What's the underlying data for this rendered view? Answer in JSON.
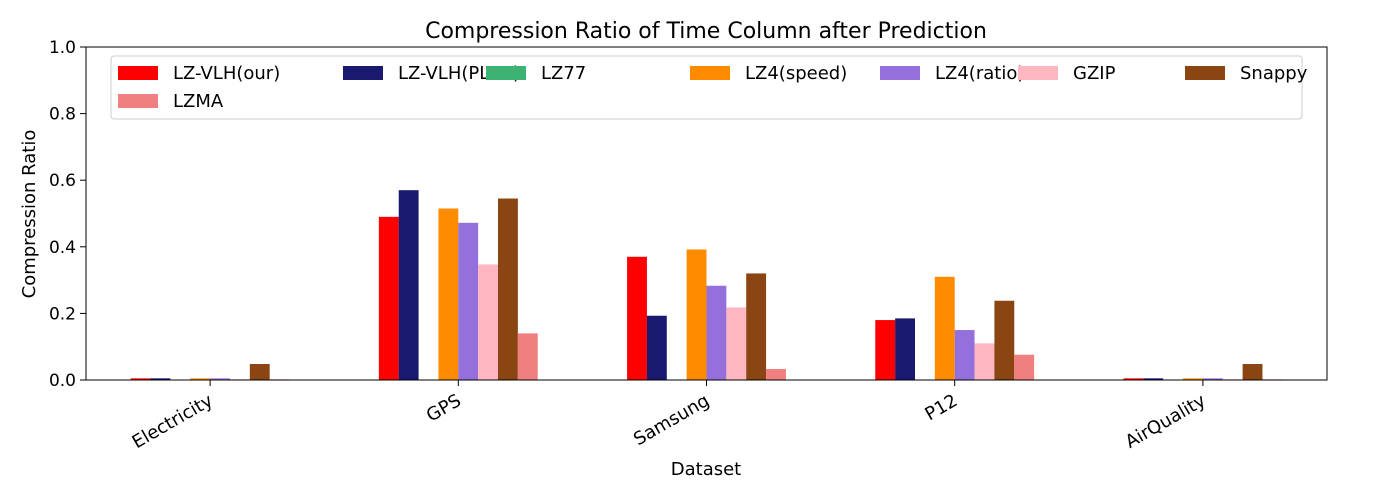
{
  "chart_data": {
    "type": "bar",
    "title": "Compression Ratio of Time Column after Prediction",
    "xlabel": "Dataset",
    "ylabel": "Compression Ratio",
    "ylim": [
      0,
      1.0
    ],
    "yticks": [
      "0.0",
      "0.2",
      "0.4",
      "0.6",
      "0.8",
      "1.0"
    ],
    "categories": [
      "Electricity",
      "GPS",
      "Samsung",
      "P12",
      "AirQuality"
    ],
    "legend_position": "top",
    "grid": false,
    "series": [
      {
        "name": "LZ-VLH(our)",
        "color": "#ff0000",
        "values": [
          0.005,
          0.49,
          0.37,
          0.18,
          0.005
        ]
      },
      {
        "name": "LZ-VLH(PLUS)",
        "color": "#191970",
        "values": [
          0.005,
          0.57,
          0.193,
          0.185,
          0.005
        ]
      },
      {
        "name": "LZ77",
        "color": "#3cb371",
        "values": [
          0.0,
          0.0,
          0.0,
          0.0,
          0.0
        ]
      },
      {
        "name": "LZ4(speed)",
        "color": "#ff8c00",
        "values": [
          0.005,
          0.515,
          0.392,
          0.31,
          0.005
        ]
      },
      {
        "name": "LZ4(ratio)",
        "color": "#9370db",
        "values": [
          0.005,
          0.472,
          0.283,
          0.15,
          0.005
        ]
      },
      {
        "name": "GZIP",
        "color": "#ffb6c1",
        "values": [
          0.002,
          0.347,
          0.218,
          0.11,
          0.002
        ]
      },
      {
        "name": "Snappy",
        "color": "#8b4513",
        "values": [
          0.048,
          0.545,
          0.32,
          0.238,
          0.048
        ]
      },
      {
        "name": "LZMA",
        "color": "#f08080",
        "values": [
          0.002,
          0.14,
          0.033,
          0.076,
          0.002
        ]
      }
    ]
  }
}
